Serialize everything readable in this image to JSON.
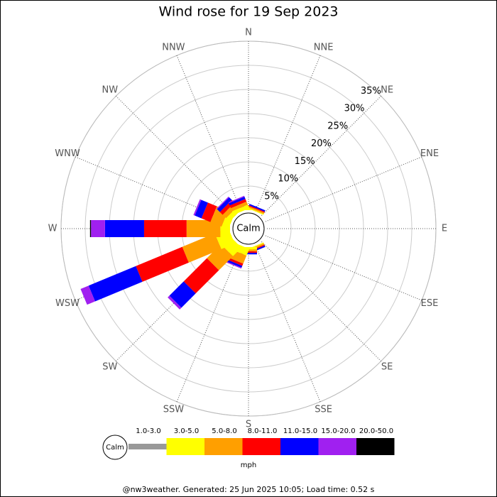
{
  "chart_data": {
    "type": "windrose",
    "title": "Wind rose for 19 Sep 2023",
    "directions": [
      "N",
      "NNE",
      "NE",
      "ENE",
      "E",
      "ESE",
      "SE",
      "SSE",
      "S",
      "SSW",
      "SW",
      "WSW",
      "W",
      "WNW",
      "NW",
      "NNW"
    ],
    "center_label": "Calm",
    "rlim": [
      0,
      35
    ],
    "rticks": [
      {
        "value": 5,
        "label": "5%"
      },
      {
        "value": 10,
        "label": "10%"
      },
      {
        "value": 15,
        "label": "15%"
      },
      {
        "value": 20,
        "label": "20%"
      },
      {
        "value": 25,
        "label": "25%"
      },
      {
        "value": 30,
        "label": "30%"
      },
      {
        "value": 35,
        "label": "35%"
      }
    ],
    "series": [
      {
        "name": "1.0-3.0",
        "color": "#999999",
        "values": [
          0,
          0,
          0,
          0,
          0,
          0,
          0,
          0,
          0,
          0,
          0,
          0,
          0,
          0,
          0,
          0
        ]
      },
      {
        "name": "3.0-5.0",
        "color": "#ffff00",
        "values": [
          0.3,
          0.2,
          0,
          0,
          0,
          0,
          0,
          0.2,
          0.5,
          1.5,
          2.5,
          3,
          2,
          1.5,
          1,
          0.8
        ]
      },
      {
        "name": "5.0-8.0",
        "color": "#ff9f00",
        "values": [
          0.2,
          0.3,
          0,
          0,
          0,
          0,
          0,
          0.3,
          0.4,
          1.8,
          4.1,
          7.3,
          7,
          2.5,
          1,
          0.7
        ]
      },
      {
        "name": "8.0-11.0",
        "color": "#ff0000",
        "values": [
          0.1,
          0.2,
          0,
          0,
          0,
          0,
          0,
          0.2,
          0.3,
          0.5,
          6.8,
          10.4,
          8.8,
          2,
          0.8,
          0.6
        ]
      },
      {
        "name": "11.0-15.0",
        "color": "#0000ff",
        "values": [
          0.2,
          0.3,
          0,
          0,
          0,
          0,
          0,
          0.3,
          0.3,
          0.4,
          4.2,
          10.6,
          8.1,
          1.5,
          0.8,
          0.5
        ]
      },
      {
        "name": "15.0-20.0",
        "color": "#a020f0",
        "values": [
          0,
          0,
          0,
          0,
          0,
          0,
          0,
          0,
          0,
          0.2,
          0.5,
          1.8,
          2.9,
          0.3,
          0.2,
          0.2
        ]
      },
      {
        "name": "20.0-50.0",
        "color": "#000000",
        "values": [
          0,
          0,
          0,
          0,
          0,
          0,
          0,
          0,
          0,
          0,
          0,
          0,
          0.2,
          0,
          0,
          0
        ]
      }
    ],
    "legend_unit": "mph",
    "footer": "@nw3weather. Generated: 25 Jun 2025 10:05; Load time: 0.52 s"
  }
}
